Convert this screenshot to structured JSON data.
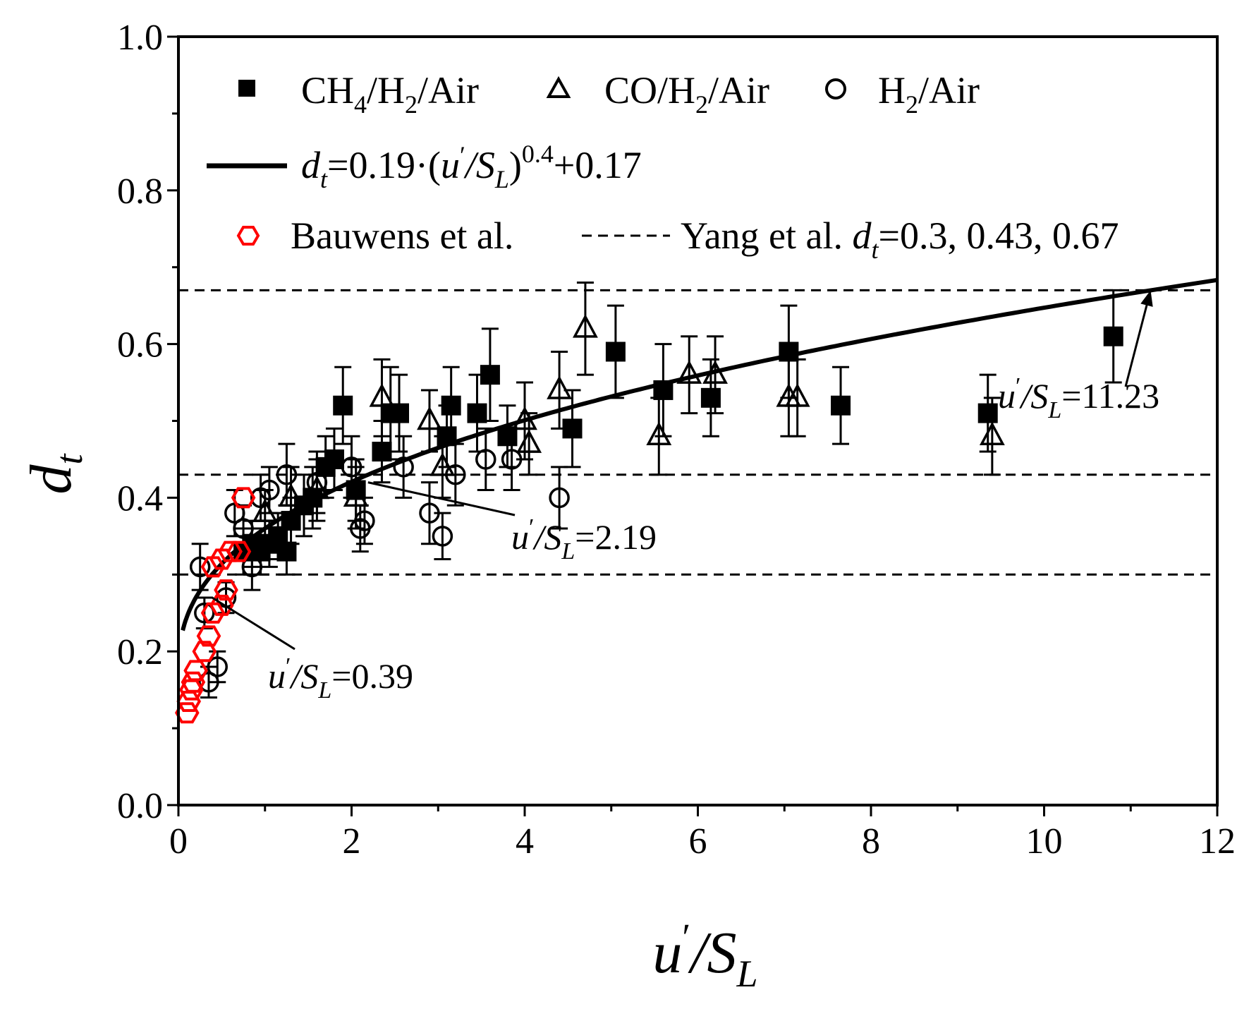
{
  "chart_data": {
    "type": "scatter",
    "xlabel": {
      "main": "u",
      "prime": "′",
      "slash": "/S",
      "sub": "L"
    },
    "ylabel": {
      "main": "d",
      "sub": "t"
    },
    "xlim": [
      0,
      12
    ],
    "ylim": [
      0.0,
      1.0
    ],
    "xticks": [
      0,
      2,
      4,
      6,
      8,
      10,
      12
    ],
    "xtick_labels": [
      "0",
      "2",
      "4",
      "6",
      "8",
      "10",
      "12"
    ],
    "yticks": [
      0.0,
      0.2,
      0.4,
      0.6,
      0.8,
      1.0
    ],
    "ytick_labels": [
      "0.0",
      "0.2",
      "0.4",
      "0.6",
      "0.8",
      "1.0"
    ],
    "grid": false,
    "legend_position": "top",
    "legend": {
      "ch4": {
        "a": "CH",
        "b": "4",
        "c": "/H",
        "d": "2",
        "e": "/Air"
      },
      "co": {
        "a": "CO/H",
        "b": "2",
        "c": "/Air"
      },
      "h2": {
        "a": "H",
        "b": "2",
        "c": "/Air"
      },
      "fit": {
        "a": "d",
        "b": "t",
        "c": "=0.19·(",
        "d": "u",
        "e": "′",
        "f": "/S",
        "g": "L",
        "h": ")",
        "i": "0.4",
        "j": "+0.17"
      },
      "bauwens": "Bauwens et al.",
      "yang": {
        "a": "Yang et al. ",
        "b": "d",
        "c": "t",
        "d": "=0.3, 0.43, 0.67"
      }
    },
    "fit_curve": {
      "a": 0.19,
      "exponent": 0.4,
      "b": 0.17,
      "x_range": [
        0.05,
        12
      ]
    },
    "reference_lines": [
      0.3,
      0.43,
      0.67
    ],
    "annotations": [
      {
        "label": {
          "a": "u",
          "b": "′",
          "c": "/S",
          "d": "L",
          "e": "=0.39"
        },
        "target": [
          0.39,
          0.27
        ]
      },
      {
        "label": {
          "a": "u",
          "b": "′",
          "c": "/S",
          "d": "L",
          "e": "=2.19"
        },
        "target": [
          2.19,
          0.42
        ]
      },
      {
        "label": {
          "a": "u",
          "b": "′",
          "c": "/S",
          "d": "L",
          "e": "=11.23"
        },
        "target": [
          11.23,
          0.67
        ]
      }
    ],
    "series": [
      {
        "name": "CH4/H2/Air",
        "marker": "filled-square",
        "points": [
          [
            0.75,
            0.33,
            0.03
          ],
          [
            0.85,
            0.34,
            0.03
          ],
          [
            0.95,
            0.33,
            0.03
          ],
          [
            1.05,
            0.34,
            0.03
          ],
          [
            1.15,
            0.35,
            0.03
          ],
          [
            1.25,
            0.33,
            0.03
          ],
          [
            1.3,
            0.37,
            0.03
          ],
          [
            1.45,
            0.39,
            0.04
          ],
          [
            1.55,
            0.4,
            0.04
          ],
          [
            1.7,
            0.44,
            0.04
          ],
          [
            1.8,
            0.45,
            0.04
          ],
          [
            1.9,
            0.52,
            0.05
          ],
          [
            2.05,
            0.41,
            0.04
          ],
          [
            2.35,
            0.46,
            0.04
          ],
          [
            2.45,
            0.51,
            0.06
          ],
          [
            2.55,
            0.51,
            0.05
          ],
          [
            3.1,
            0.48,
            0.04
          ],
          [
            3.15,
            0.52,
            0.05
          ],
          [
            3.45,
            0.51,
            0.05
          ],
          [
            3.6,
            0.56,
            0.06
          ],
          [
            3.8,
            0.48,
            0.04
          ],
          [
            4.55,
            0.49,
            0.05
          ],
          [
            5.05,
            0.59,
            0.06
          ],
          [
            5.6,
            0.54,
            0.06
          ],
          [
            6.15,
            0.53,
            0.05
          ],
          [
            7.05,
            0.59,
            0.06
          ],
          [
            7.65,
            0.52,
            0.05
          ],
          [
            9.35,
            0.51,
            0.05
          ],
          [
            10.8,
            0.61,
            0.06
          ]
        ]
      },
      {
        "name": "CO/H2/Air",
        "marker": "open-triangle",
        "points": [
          [
            1.0,
            0.38,
            0.03
          ],
          [
            1.3,
            0.4,
            0.04
          ],
          [
            1.6,
            0.41,
            0.04
          ],
          [
            2.05,
            0.4,
            0.04
          ],
          [
            2.35,
            0.53,
            0.05
          ],
          [
            2.9,
            0.5,
            0.04
          ],
          [
            3.05,
            0.44,
            0.04
          ],
          [
            4.0,
            0.5,
            0.05
          ],
          [
            4.05,
            0.47,
            0.04
          ],
          [
            4.4,
            0.54,
            0.05
          ],
          [
            4.7,
            0.62,
            0.06
          ],
          [
            5.55,
            0.48,
            0.05
          ],
          [
            5.9,
            0.56,
            0.05
          ],
          [
            6.2,
            0.56,
            0.05
          ],
          [
            7.05,
            0.53,
            0.05
          ],
          [
            7.15,
            0.53,
            0.05
          ],
          [
            9.4,
            0.48,
            0.05
          ]
        ]
      },
      {
        "name": "H2/Air",
        "marker": "open-circle",
        "points": [
          [
            0.25,
            0.31,
            0.03
          ],
          [
            0.3,
            0.25,
            0.02
          ],
          [
            0.35,
            0.16,
            0.02
          ],
          [
            0.45,
            0.18,
            0.02
          ],
          [
            0.55,
            0.27,
            0.02
          ],
          [
            0.65,
            0.38,
            0.03
          ],
          [
            0.75,
            0.36,
            0.03
          ],
          [
            0.85,
            0.31,
            0.03
          ],
          [
            0.95,
            0.4,
            0.03
          ],
          [
            1.05,
            0.41,
            0.03
          ],
          [
            1.25,
            0.43,
            0.04
          ],
          [
            1.6,
            0.42,
            0.04
          ],
          [
            2.0,
            0.44,
            0.04
          ],
          [
            2.1,
            0.36,
            0.03
          ],
          [
            2.15,
            0.37,
            0.03
          ],
          [
            2.6,
            0.44,
            0.04
          ],
          [
            2.9,
            0.38,
            0.04
          ],
          [
            3.05,
            0.35,
            0.03
          ],
          [
            3.2,
            0.43,
            0.04
          ],
          [
            3.55,
            0.45,
            0.04
          ],
          [
            3.85,
            0.45,
            0.04
          ],
          [
            4.4,
            0.4,
            0.04
          ]
        ]
      },
      {
        "name": "Bauwens et al.",
        "marker": "open-hexagon",
        "color": "#ff0000",
        "points": [
          [
            0.1,
            0.12
          ],
          [
            0.12,
            0.135
          ],
          [
            0.15,
            0.15
          ],
          [
            0.17,
            0.16
          ],
          [
            0.2,
            0.175
          ],
          [
            0.3,
            0.2
          ],
          [
            0.35,
            0.22
          ],
          [
            0.4,
            0.25
          ],
          [
            0.5,
            0.26
          ],
          [
            0.55,
            0.28
          ],
          [
            0.4,
            0.31
          ],
          [
            0.5,
            0.32
          ],
          [
            0.6,
            0.33
          ],
          [
            0.7,
            0.33
          ],
          [
            0.75,
            0.4
          ]
        ]
      }
    ]
  }
}
